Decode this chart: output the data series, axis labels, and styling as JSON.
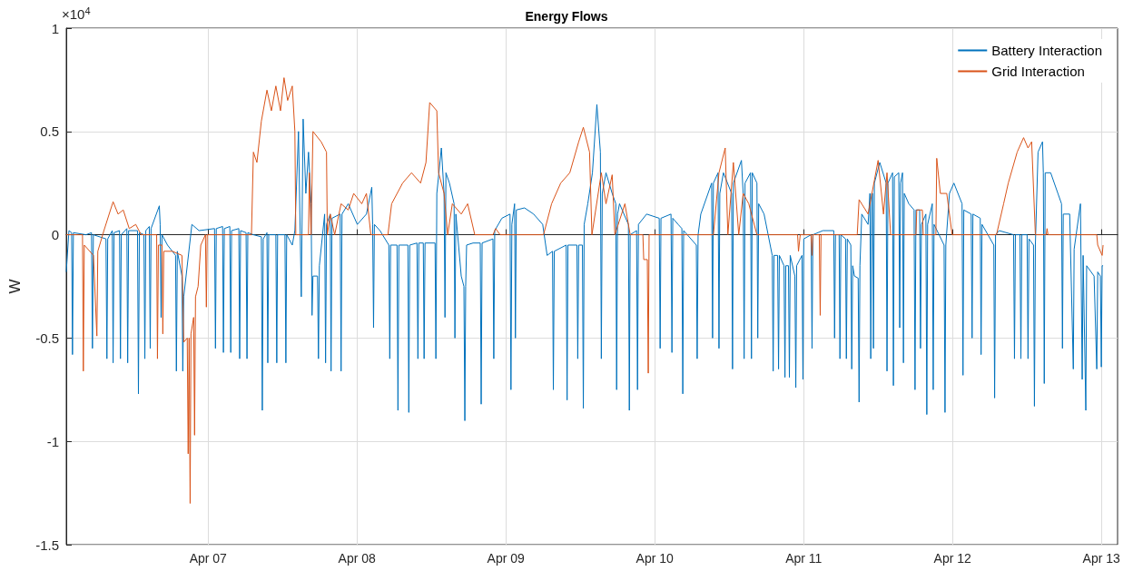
{
  "chart_data": {
    "type": "line",
    "title": "Energy Flows",
    "ylabel": "W",
    "annotations": [
      "×10$^{4}$"
    ],
    "xlim": [
      "--04-06T01:08",
      "--04-13T02:36"
    ],
    "xticks": [
      {
        "value": "--04-07",
        "label": "Apr 07"
      },
      {
        "value": "--04-08",
        "label": "Apr 08"
      },
      {
        "value": "--04-09",
        "label": "Apr 09"
      },
      {
        "value": "--04-10",
        "label": "Apr 10"
      },
      {
        "value": "--04-11",
        "label": "Apr 11"
      },
      {
        "value": "--04-12",
        "label": "Apr 12"
      },
      {
        "value": "--04-13",
        "label": "Apr 13"
      }
    ],
    "ylim": [
      -1.5,
      1
    ],
    "yticks": [
      -1.5,
      -1,
      -0.5,
      0,
      0.5,
      1
    ],
    "grid": true,
    "legend": "top right",
    "line_style": "solid",
    "series": [
      {
        "name": "Battery Interaction",
        "color": "#0072bd",
        "x": [
          "--04-06T01:08",
          "--04-06T01:34",
          "--04-06T02:00",
          "--04-06T02:08",
          "--04-06T02:17",
          "--04-06T04:19",
          "--04-06T05:12",
          "--04-06T05:21",
          "--04-06T05:30",
          "--04-06T07:32",
          "--04-06T07:41",
          "--04-06T07:49",
          "--04-06T08:33",
          "--04-06T08:41",
          "--04-06T08:50",
          "--04-06T09:43",
          "--04-06T09:52",
          "--04-06T10:00",
          "--04-06T10:54",
          "--04-06T11:02",
          "--04-06T11:11",
          "--04-06T12:37",
          "--04-06T12:46",
          "--04-06T12:55",
          "--04-06T13:39",
          "--04-06T13:48",
          "--04-06T13:57",
          "--04-06T14:31",
          "--04-06T14:40",
          "--04-06T14:48",
          "--04-06T16:08",
          "--04-06T16:16",
          "--04-06T16:25",
          "--04-06T16:34",
          "--04-06T17:27",
          "--04-06T18:45",
          "--04-06T18:53",
          "--04-06T19:02",
          "--04-06T19:47",
          "--04-06T19:55",
          "--04-06T20:04",
          "--04-06T21:23",
          "--04-06T22:32",
          "--04-07T01:02",
          "--04-07T01:11",
          "--04-07T01:19",
          "--04-07T02:20",
          "--04-07T02:28",
          "--04-07T02:37",
          "--04-07T03:30",
          "--04-07T03:39",
          "--04-07T03:47",
          "--04-07T04:57",
          "--04-07T05:05",
          "--04-07T05:14",
          "--04-07T06:07",
          "--04-07T06:16",
          "--04-07T06:24",
          "--04-07T07:18",
          "--04-07T08:35",
          "--04-07T08:44",
          "--04-07T08:53",
          "--04-07T09:29",
          "--04-07T09:37",
          "--04-07T09:46",
          "--04-07T10:55",
          "--04-07T11:04",
          "--04-07T11:12",
          "--04-07T12:23",
          "--04-07T12:32",
          "--04-07T12:40",
          "--04-07T13:34",
          "--04-07T13:59",
          "--04-07T14:34",
          "--04-07T15:01",
          "--04-07T15:19",
          "--04-07T15:45",
          "--04-07T16:11",
          "--04-07T16:36",
          "--04-07T16:45",
          "--04-07T16:54",
          "--04-07T17:38",
          "--04-07T17:47",
          "--04-07T17:56",
          "--04-07T18:47",
          "--04-07T18:56",
          "--04-07T19:05",
          "--04-07T19:41",
          "--04-07T19:49",
          "--04-07T19:58",
          "--04-07T21:17",
          "--04-07T21:26",
          "--04-07T21:35",
          "--04-07T22:35",
          "--04-08T00:03",
          "--04-08T01:31",
          "--04-08T02:23",
          "--04-08T02:31",
          "--04-08T02:40",
          "--04-08T02:48",
          "--04-08T03:42",
          "--04-08T05:08",
          "--04-08T05:17",
          "--04-08T05:25",
          "--04-08T06:27",
          "--04-08T06:36",
          "--04-08T06:45",
          "--04-08T08:12",
          "--04-08T08:21",
          "--04-08T08:30",
          "--04-08T09:40",
          "--04-08T09:49",
          "--04-08T09:58",
          "--04-08T10:41",
          "--04-08T10:49",
          "--04-08T10:58",
          "--04-08T12:35",
          "--04-08T12:43",
          "--04-08T12:52",
          "--04-08T13:36",
          "--04-08T14:02",
          "--04-08T14:11",
          "--04-08T14:20",
          "--04-08T14:54",
          "--04-08T15:39",
          "--04-08T15:47",
          "--04-08T15:56",
          "--04-08T16:48",
          "--04-08T17:14",
          "--04-08T17:23",
          "--04-08T17:31",
          "--04-08T17:40",
          "--04-08T18:42",
          "--04-08T19:52",
          "--04-08T20:01",
          "--04-08T20:10",
          "--04-08T21:55",
          "--04-08T22:03",
          "--04-08T22:12",
          "--04-08T23:21",
          "--04-09T00:40",
          "--04-09T00:49",
          "--04-09T00:58",
          "--04-09T01:24",
          "--04-09T01:32",
          "--04-09T01:41",
          "--04-09T03:00",
          "--04-09T04:28",
          "--04-09T05:56",
          "--04-09T06:39",
          "--04-09T07:31",
          "--04-09T07:39",
          "--04-09T07:48",
          "--04-09T09:43",
          "--04-09T09:52",
          "--04-09T10:00",
          "--04-09T11:27",
          "--04-09T11:35",
          "--04-09T11:44",
          "--04-09T12:20",
          "--04-09T12:29",
          "--04-09T12:37",
          "--04-09T13:12",
          "--04-09T13:57",
          "--04-09T14:40",
          "--04-09T15:14",
          "--04-09T15:23",
          "--04-09T15:32",
          "--04-09T16:08",
          "--04-09T17:08",
          "--04-09T17:43",
          "--04-09T17:51",
          "--04-09T18:00",
          "--04-09T18:19",
          "--04-09T19:45",
          "--04-09T19:54",
          "--04-09T20:02",
          "--04-09T21:04",
          "--04-09T21:13",
          "--04-09T21:22",
          "--04-09T22:41",
          "--04-10T00:43",
          "--04-10T00:52",
          "--04-10T01:00",
          "--04-10T02:37",
          "--04-10T02:46",
          "--04-10T02:54",
          "--04-10T03:46",
          "--04-10T04:22",
          "--04-10T04:31",
          "--04-10T04:39",
          "--04-10T06:42",
          "--04-10T06:50",
          "--04-10T06:59",
          "--04-10T07:25",
          "--04-10T09:10",
          "--04-10T09:19",
          "--04-10T09:27",
          "--04-10T10:12",
          "--04-10T10:21",
          "--04-10T10:29",
          "--04-10T11:04",
          "--04-10T12:23",
          "--04-10T12:32",
          "--04-10T12:40",
          "--04-10T13:58",
          "--04-10T14:15",
          "--04-10T14:24",
          "--04-10T14:33",
          "--04-10T15:26",
          "--04-10T15:35",
          "--04-10T15:43",
          "--04-10T16:28",
          "--04-10T16:36",
          "--04-10T16:45",
          "--04-10T17:37",
          "--04-10T18:56",
          "--04-10T19:05",
          "--04-10T19:13",
          "--04-10T19:48",
          "--04-10T19:57",
          "--04-10T20:05",
          "--04-10T20:50",
          "--04-10T20:59",
          "--04-10T21:07",
          "--04-10T21:33",
          "--04-10T21:42",
          "--04-10T21:50",
          "--04-10T22:35",
          "--04-10T22:44",
          "--04-10T22:52",
          "--04-10T23:44",
          "--04-10T23:53",
          "--04-11T00:01",
          "--04-11T01:12",
          "--04-11T01:21",
          "--04-11T01:29",
          "--04-11T03:06",
          "--04-11T04:51",
          "--04-11T04:59",
          "--04-11T05:08",
          "--04-11T05:43",
          "--04-11T05:51",
          "--04-11T06:00",
          "--04-11T06:45",
          "--04-11T06:53",
          "--04-11T07:02",
          "--04-11T07:36",
          "--04-11T07:45",
          "--04-11T07:54",
          "--04-11T08:11",
          "--04-11T08:47",
          "--04-11T08:56",
          "--04-11T09:04",
          "--04-11T09:22",
          "--04-11T10:23",
          "--04-11T10:41",
          "--04-11T10:49",
          "--04-11T10:58",
          "--04-11T11:07",
          "--04-11T11:15",
          "--04-11T11:24",
          "--04-11T12:16",
          "--04-11T13:18",
          "--04-11T13:26",
          "--04-11T13:35",
          "--04-11T14:20",
          "--04-11T14:28",
          "--04-11T14:37",
          "--04-11T15:20",
          "--04-11T15:29",
          "--04-11T15:37",
          "--04-11T15:56",
          "--04-11T16:05",
          "--04-11T16:13",
          "--04-11T16:57",
          "--04-11T17:48",
          "--04-11T17:57",
          "--04-11T18:06",
          "--04-11T18:42",
          "--04-11T18:50",
          "--04-11T18:59",
          "--04-11T19:42",
          "--04-11T19:51",
          "--04-11T19:59",
          "--04-11T20:44",
          "--04-11T20:53",
          "--04-11T21:01",
          "--04-11T22:38",
          "--04-11T22:47",
          "--04-11T22:55",
          "--04-11T23:30",
          "--04-12T00:13",
          "--04-12T01:32",
          "--04-12T01:41",
          "--04-12T01:49",
          "--04-12T03:00",
          "--04-12T03:09",
          "--04-12T03:17",
          "--04-12T04:28",
          "--04-12T04:36",
          "--04-12T04:45",
          "--04-12T06:39",
          "--04-12T06:47",
          "--04-12T06:56",
          "--04-12T07:31",
          "--04-12T09:50",
          "--04-12T09:59",
          "--04-12T10:08",
          "--04-12T10:52",
          "--04-12T11:01",
          "--04-12T11:10",
          "--04-12T12:01",
          "--04-12T12:10",
          "--04-12T12:19",
          "--04-12T13:03",
          "--04-12T13:12",
          "--04-12T13:21",
          "--04-12T13:47",
          "--04-12T14:30",
          "--04-12T14:38",
          "--04-12T14:47",
          "--04-12T14:56",
          "--04-12T15:49",
          "--04-12T16:59",
          "--04-12T17:34",
          "--04-12T17:43",
          "--04-12T17:51",
          "--04-12T18:53",
          "--04-12T19:28",
          "--04-12T19:36",
          "--04-12T20:37",
          "--04-12T20:54",
          "--04-12T21:03",
          "--04-12T21:29",
          "--04-12T21:37",
          "--04-12T22:49",
          "--04-12T23:15",
          "--04-12T23:24",
          "--04-12T23:50",
          "--04-12T23:59",
          "--04-13T00:07",
          "--04-13T00:16"
        ],
        "values": [
          -0.18,
          0.02,
          0.01,
          -0.58,
          0.01,
          0.0,
          0.01,
          -0.55,
          0.0,
          -0.02,
          -0.6,
          -0.02,
          0.02,
          -0.62,
          0.01,
          0.02,
          -0.6,
          0.0,
          0.03,
          -0.62,
          0.02,
          0.02,
          -0.77,
          0.01,
          0.0,
          -0.6,
          0.02,
          0.04,
          -0.55,
          0.03,
          0.14,
          0.05,
          -0.4,
          0.0,
          -0.05,
          -0.1,
          -0.66,
          -0.08,
          -0.2,
          -0.66,
          -0.3,
          0.05,
          0.02,
          0.03,
          -0.55,
          0.03,
          0.04,
          -0.57,
          0.03,
          0.04,
          -0.57,
          0.02,
          0.03,
          -0.6,
          0.02,
          0.01,
          -0.6,
          0.01,
          0.0,
          -0.01,
          -0.85,
          -0.02,
          0.01,
          -0.62,
          0.0,
          0.0,
          -0.62,
          0.0,
          0.0,
          -0.62,
          0.0,
          -0.05,
          0.02,
          0.5,
          -0.3,
          0.56,
          0.2,
          0.4,
          0.15,
          -0.39,
          -0.2,
          -0.2,
          -0.6,
          -0.15,
          0.1,
          -0.62,
          0.05,
          0.1,
          -0.66,
          0.08,
          0.1,
          -0.66,
          0.1,
          0.15,
          0.05,
          0.1,
          0.23,
          0.05,
          -0.45,
          0.05,
          0.02,
          -0.05,
          -0.6,
          -0.05,
          -0.05,
          -0.85,
          -0.05,
          -0.05,
          -0.86,
          -0.05,
          -0.04,
          -0.6,
          -0.04,
          -0.04,
          -0.6,
          -0.04,
          -0.04,
          -0.6,
          0.2,
          0.42,
          0.2,
          -0.4,
          0.3,
          0.25,
          0.15,
          -0.5,
          0.1,
          -0.2,
          -0.25,
          -0.9,
          -0.25,
          -0.05,
          -0.04,
          -0.04,
          -0.82,
          -0.04,
          -0.02,
          -0.6,
          0.02,
          0.08,
          0.1,
          -0.75,
          0.05,
          0.15,
          -0.5,
          0.12,
          0.13,
          0.1,
          0.05,
          -0.1,
          -0.08,
          -0.75,
          -0.08,
          -0.05,
          -0.8,
          -0.05,
          -0.05,
          -0.6,
          -0.05,
          -0.05,
          -0.84,
          0.05,
          0.15,
          0.3,
          0.63,
          0.4,
          -0.6,
          0.2,
          0.3,
          0.2,
          0.15,
          -0.75,
          0.1,
          0.15,
          0.05,
          -0.85,
          0.0,
          0.02,
          -0.75,
          0.05,
          0.1,
          0.08,
          -0.55,
          0.08,
          0.1,
          -0.57,
          0.08,
          0.05,
          0.03,
          -0.77,
          0.02,
          -0.05,
          -0.6,
          0.0,
          0.1,
          0.25,
          -0.5,
          0.25,
          0.3,
          -0.55,
          0.2,
          0.3,
          0.2,
          -0.65,
          0.25,
          0.36,
          0.2,
          -0.6,
          0.25,
          0.3,
          -0.6,
          0.3,
          0.25,
          -0.5,
          0.15,
          0.1,
          -0.1,
          -0.66,
          -0.1,
          -0.1,
          -0.65,
          -0.1,
          -0.15,
          -0.69,
          -0.15,
          -0.15,
          -0.69,
          -0.1,
          -0.2,
          -0.74,
          -0.15,
          -0.1,
          -0.7,
          -0.02,
          0.0,
          -0.55,
          0.0,
          0.02,
          0.02,
          -0.5,
          0.0,
          0.0,
          -0.6,
          0.0,
          -0.02,
          -0.6,
          -0.02,
          -0.05,
          -0.65,
          -0.15,
          -0.2,
          -0.21,
          -0.81,
          -0.15,
          0.1,
          0.05,
          0.2,
          -0.6,
          0.2,
          0.2,
          -0.55,
          0.25,
          0.35,
          0.25,
          -0.66,
          0.25,
          0.3,
          -0.73,
          0.28,
          0.3,
          -0.45,
          0.25,
          0.3,
          -0.62,
          0.2,
          0.15,
          0.12,
          -0.75,
          0.12,
          0.12,
          -0.55,
          0.05,
          0.1,
          -0.87,
          0.05,
          0.15,
          -0.75,
          0.05,
          -0.05,
          -0.86,
          -0.05,
          0.2,
          0.25,
          0.15,
          -0.68,
          0.12,
          0.1,
          -0.5,
          0.1,
          0.08,
          -0.58,
          0.05,
          -0.05,
          -0.79,
          0.0,
          0.02,
          0.0,
          -0.6,
          0.0,
          0.0,
          -0.6,
          0.0,
          0.0,
          -0.6,
          -0.02,
          -0.05,
          -0.83,
          -0.05,
          0.4,
          0.45,
          0.3,
          -0.72,
          0.3,
          0.3,
          0.2,
          0.15,
          -0.55,
          0.1,
          0.1,
          -0.65,
          -0.07,
          0.15,
          -0.7,
          -0.1,
          -0.85,
          -0.15,
          -0.2,
          -0.65,
          -0.18,
          -0.2,
          -0.64,
          -0.15,
          -0.15
        ]
      },
      {
        "name": "Grid Interaction",
        "color": "#d95319",
        "x": [
          "--04-06T01:08",
          "--04-06T03:45",
          "--04-06T03:53",
          "--04-06T04:02",
          "--04-06T05:31",
          "--04-06T06:04",
          "--04-06T06:13",
          "--04-06T07:12",
          "--04-06T08:41",
          "--04-06T09:29",
          "--04-06T10:19",
          "--04-06T11:17",
          "--04-06T12:20",
          "--04-06T13:12",
          "--04-06T15:42",
          "--04-06T15:50",
          "--04-06T15:59",
          "--04-06T16:34",
          "--04-06T16:42",
          "--04-06T16:51",
          "--04-06T18:14",
          "--04-06T19:47",
          "--04-06T20:04",
          "--04-06T20:38",
          "--04-06T20:47",
          "--04-06T20:56",
          "--04-06T21:06",
          "--04-06T21:14",
          "--04-06T21:40",
          "--04-06T21:49",
          "--04-06T21:58",
          "--04-06T22:23",
          "--04-06T22:49",
          "--04-06T23:34",
          "--04-06T23:43",
          "--04-06T23:51",
          "--04-07T06:59",
          "--04-07T07:18",
          "--04-07T07:52",
          "--04-07T08:35",
          "--04-07T09:29",
          "--04-07T10:12",
          "--04-07T10:55",
          "--04-07T11:40",
          "--04-07T12:14",
          "--04-07T12:49",
          "--04-07T13:34",
          "--04-07T13:59",
          "--04-07T14:08",
          "--04-07T16:11",
          "--04-07T16:19",
          "--04-07T16:36",
          "--04-07T16:54",
          "--04-07T18:13",
          "--04-07T19:05",
          "--04-07T19:13",
          "--04-07T19:41",
          "--04-07T20:24",
          "--04-07T21:26",
          "--04-07T22:35",
          "--04-07T23:28",
          "--04-08T00:46",
          "--04-08T01:31",
          "--04-08T02:14",
          "--04-08T04:59",
          "--04-08T05:35",
          "--04-08T07:21",
          "--04-08T08:47",
          "--04-08T10:15",
          "--04-08T11:07",
          "--04-08T11:43",
          "--04-08T12:52",
          "--04-08T13:09",
          "--04-08T14:02",
          "--04-08T14:37",
          "--04-08T15:22",
          "--04-08T16:48",
          "--04-08T17:50",
          "--04-08T18:59",
          "--04-08T21:55",
          "--04-08T22:21",
          "--04-08T23:04",
          "--04-09T06:04",
          "--04-09T07:22",
          "--04-09T08:50",
          "--04-09T10:18",
          "--04-09T11:44",
          "--04-09T12:29",
          "--04-09T13:29",
          "--04-09T13:52",
          "--04-09T15:23",
          "--04-09T16:08",
          "--04-09T17:08",
          "--04-09T17:34",
          "--04-09T19:11",
          "--04-09T20:02",
          "--04-09T22:05",
          "--04-09T22:13",
          "--04-09T22:48",
          "--04-09T22:57",
          "--04-09T23:05",
          "--04-10T09:27",
          "--04-10T10:21",
          "--04-10T11:21",
          "--04-10T11:47",
          "--04-10T12:40",
          "--04-10T13:32",
          "--04-10T14:15",
          "--04-10T15:09",
          "--04-10T16:28",
          "--04-10T23:01",
          "--04-10T23:10",
          "--04-10T23:27",
          "--04-11T01:12",
          "--04-11T01:21",
          "--04-11T01:29",
          "--04-11T02:31",
          "--04-11T02:40",
          "--04-11T02:48",
          "--04-11T08:38",
          "--04-11T08:56",
          "--04-11T10:23",
          "--04-11T12:00",
          "--04-11T12:52",
          "--04-11T13:26",
          "--04-11T14:01",
          "--04-11T18:06",
          "--04-11T18:14",
          "--04-11T19:08",
          "--04-11T19:16",
          "--04-11T21:19",
          "--04-11T21:27",
          "--04-11T22:02",
          "--04-11T23:04",
          "--04-11T23:56",
          "--04-12T07:05",
          "--04-12T08:14",
          "--04-12T08:59",
          "--04-12T10:25",
          "--04-12T11:27",
          "--04-12T12:10",
          "--04-12T12:45",
          "--04-12T13:21",
          "--04-12T15:06",
          "--04-12T15:14",
          "--04-12T15:23",
          "--04-12T23:15",
          "--04-12T23:24",
          "--04-13T00:07",
          "--04-13T00:16"
        ],
        "values": [
          0.0,
          0.0,
          -0.66,
          -0.05,
          -0.1,
          -0.49,
          -0.08,
          0.02,
          0.16,
          0.1,
          0.12,
          0.03,
          0.05,
          0.0,
          0.0,
          -0.6,
          -0.05,
          -0.05,
          -0.48,
          -0.08,
          -0.08,
          -0.1,
          -0.52,
          -0.5,
          -1.06,
          -0.5,
          -1.3,
          -0.48,
          -0.4,
          -0.97,
          -0.3,
          -0.25,
          -0.05,
          0.0,
          -0.35,
          0.0,
          0.0,
          0.4,
          0.35,
          0.55,
          0.7,
          0.6,
          0.72,
          0.6,
          0.76,
          0.65,
          0.72,
          0.5,
          0.0,
          0.0,
          0.3,
          0.0,
          0.5,
          0.45,
          0.4,
          0.0,
          0.1,
          0.0,
          0.15,
          0.12,
          0.2,
          0.15,
          0.2,
          0.0,
          0.0,
          0.15,
          0.25,
          0.3,
          0.25,
          0.35,
          0.64,
          0.6,
          0.3,
          0.2,
          0.0,
          0.15,
          0.1,
          0.15,
          0.0,
          0.0,
          0.03,
          0.0,
          0.0,
          0.15,
          0.25,
          0.3,
          0.45,
          0.52,
          0.4,
          0.0,
          0.3,
          0.15,
          0.29,
          0.0,
          0.15,
          0.0,
          0.0,
          -0.12,
          -0.12,
          -0.67,
          0.0,
          0.0,
          0.3,
          0.42,
          0.0,
          0.35,
          0.0,
          0.2,
          0.15,
          0.0,
          0.0,
          -0.08,
          0.0,
          0.0,
          -0.1,
          0.0,
          0.0,
          -0.39,
          0.0,
          0.0,
          0.17,
          0.1,
          0.36,
          0.1,
          0.3,
          0.0,
          0.0,
          0.12,
          0.12,
          0.0,
          0.0,
          0.37,
          0.2,
          0.2,
          0.0,
          0.0,
          0.15,
          0.25,
          0.4,
          0.47,
          0.42,
          0.45,
          0.0,
          0.0,
          0.03,
          0.0,
          0.0,
          -0.05,
          -0.1,
          -0.05
        ]
      }
    ]
  }
}
